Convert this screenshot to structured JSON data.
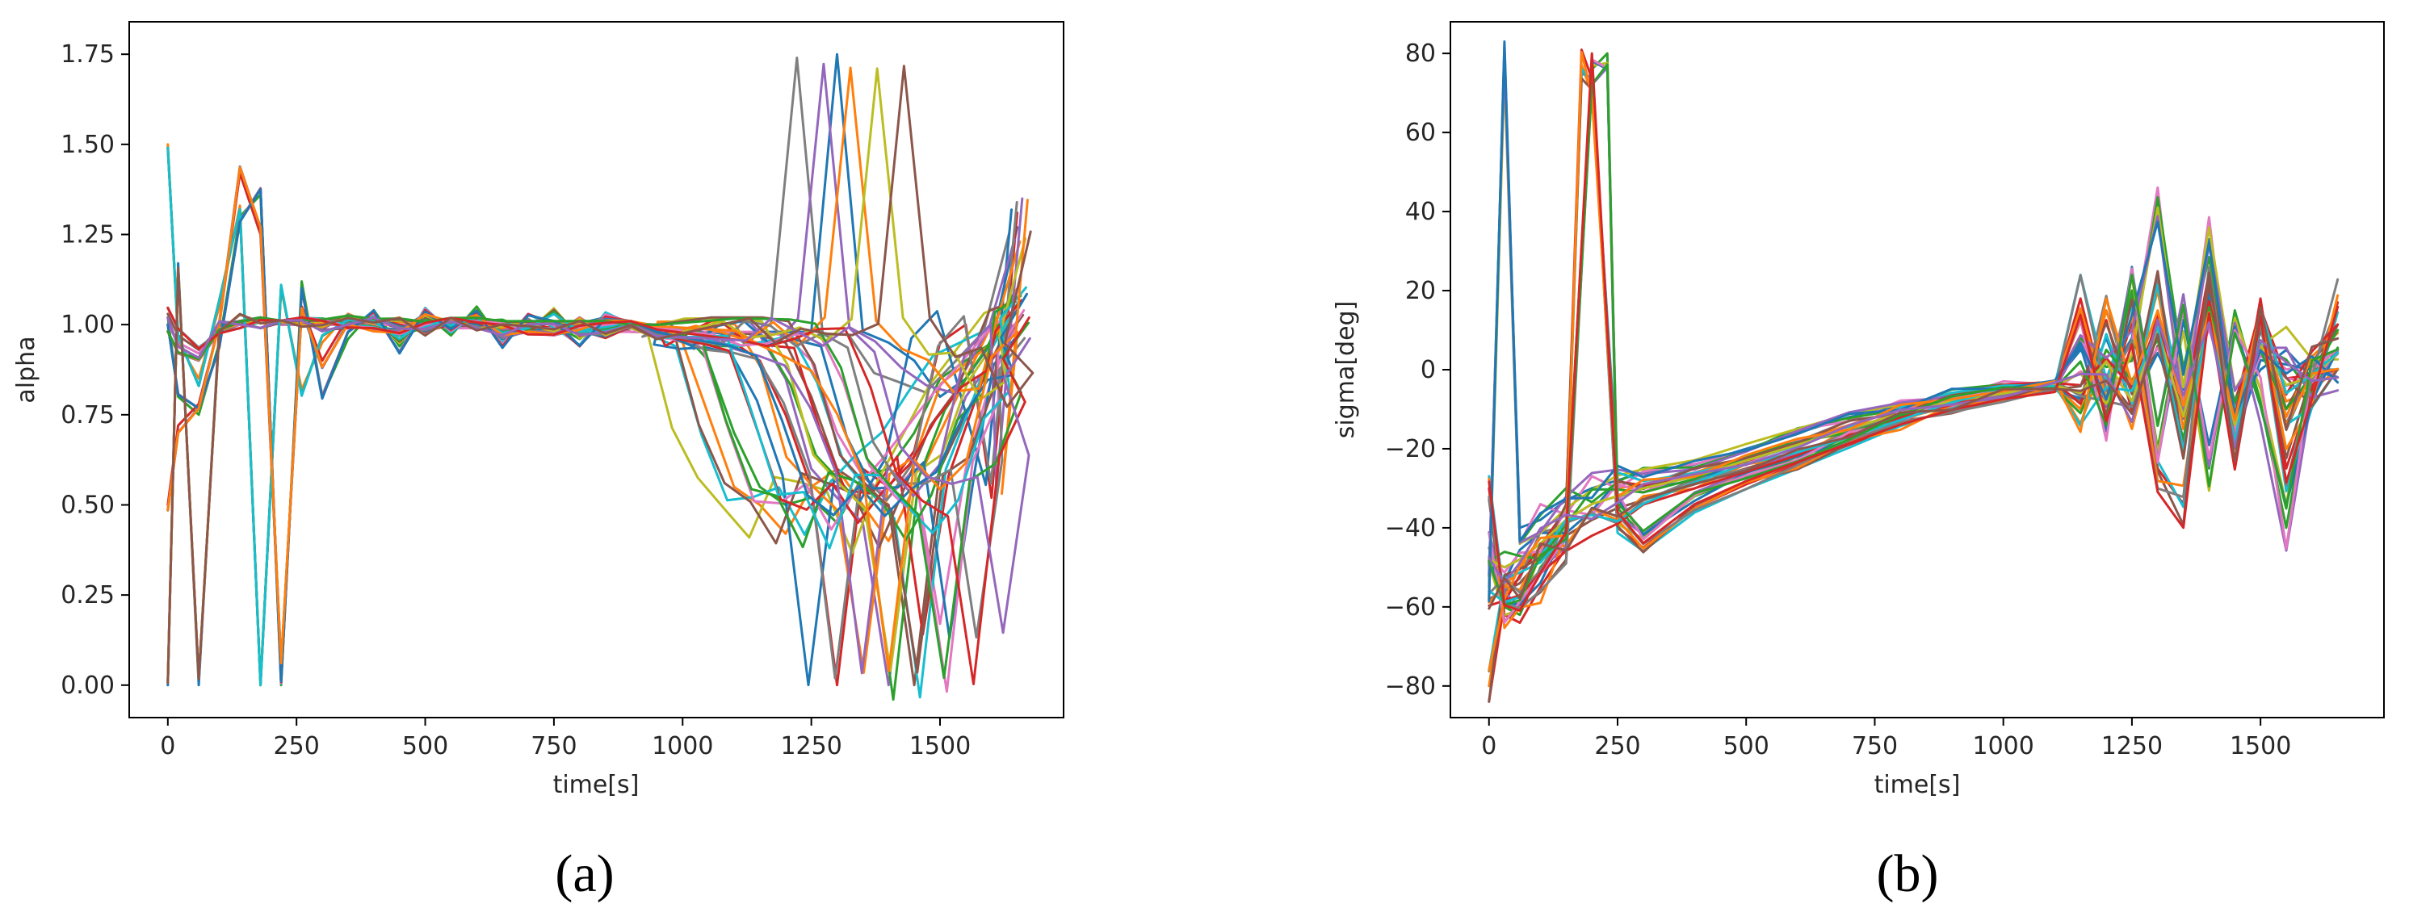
{
  "chart_data": [
    {
      "type": "line",
      "panel_label": "(a)",
      "title": "",
      "xlabel": "time[s]",
      "ylabel": "alpha",
      "xlim": [
        -75,
        1740
      ],
      "ylim": [
        -0.09,
        1.84
      ],
      "xticks": [
        0,
        250,
        500,
        750,
        1000,
        1250,
        1500
      ],
      "xtick_labels": [
        "0",
        "250",
        "500",
        "750",
        "1000",
        "1250",
        "1500"
      ],
      "yticks": [
        0.0,
        0.25,
        0.5,
        0.75,
        1.0,
        1.25,
        1.5,
        1.75
      ],
      "ytick_labels": [
        "0.00",
        "0.25",
        "0.50",
        "0.75",
        "1.00",
        "1.25",
        "1.50",
        "1.75"
      ],
      "grid": false,
      "legend": "none",
      "series_count": 36,
      "series": [
        {
          "x": [
            0,
            20,
            60,
            100,
            140,
            180,
            220,
            260,
            300,
            350,
            400,
            450,
            500,
            550,
            600,
            650,
            700,
            750,
            800,
            850,
            900,
            950,
            1000,
            1050,
            1100,
            1150,
            1200,
            1250,
            1300,
            1350,
            1400,
            1450,
            1500,
            1550,
            1600,
            1650
          ],
          "y": [
            0.0,
            1.17,
            0.0,
            1.0,
            1.01,
            1.02,
            1.0,
            1.0,
            1.0,
            1.01,
            1.02,
            1.0,
            0.99,
            1.0,
            1.0,
            0.99,
            1.0,
            0.99,
            1.0,
            0.99,
            0.98,
            0.98,
            0.98,
            0.98,
            0.97,
            0.98,
            0.98,
            0.98,
            1.75,
            0.98,
            0.95,
            0.9,
            0.8,
            0.85,
            0.95,
            1.27
          ]
        },
        {
          "x": [
            0,
            20,
            60,
            100,
            140,
            180,
            220,
            260,
            300,
            350,
            400,
            450,
            500,
            550,
            600,
            650,
            700,
            750,
            800,
            850,
            900,
            950,
            1000,
            1050,
            1100,
            1150,
            1200,
            1250,
            1300,
            1350,
            1400,
            1450,
            1500,
            1550,
            1600,
            1650
          ],
          "y": [
            1.5,
            0.95,
            0.85,
            1.05,
            1.33,
            0.0,
            1.1,
            0.82,
            0.95,
            1.03,
            1.0,
            0.96,
            1.02,
            0.98,
            1.04,
            0.96,
            1.0,
            1.03,
            0.97,
            1.0,
            0.98,
            0.98,
            0.95,
            0.75,
            0.55,
            0.5,
            0.42,
            0.55,
            0.6,
            0.5,
            0.4,
            0.55,
            0.7,
            0.85,
            1.0,
            1.1
          ]
        },
        {
          "x": [
            0,
            20,
            60,
            100,
            140,
            180,
            220,
            260,
            300,
            350,
            400,
            450,
            500,
            550,
            600,
            650,
            700,
            750,
            800,
            850,
            900,
            950,
            1000,
            1050,
            1100,
            1150,
            1200,
            1250,
            1300,
            1350,
            1400,
            1450,
            1500,
            1550,
            1600,
            1650
          ],
          "y": [
            1.02,
            0.8,
            0.75,
            0.95,
            1.3,
            1.36,
            0.0,
            1.12,
            0.8,
            0.96,
            1.04,
            0.94,
            1.03,
            0.97,
            1.05,
            0.95,
            1.01,
            1.0,
            0.96,
            1.02,
            0.99,
            0.98,
            0.98,
            0.9,
            0.7,
            0.55,
            0.5,
            0.52,
            0.45,
            0.58,
            0.6,
            0.7,
            0.85,
            0.9,
            0.95,
            1.05
          ]
        },
        {
          "x": [
            0,
            20,
            60,
            100,
            140,
            180,
            220,
            260,
            300,
            350,
            400,
            450,
            500,
            550,
            600,
            650,
            700,
            750,
            800,
            850,
            900,
            950,
            1000,
            1050,
            1100,
            1150,
            1200,
            1250,
            1300,
            1350,
            1400,
            1450,
            1500,
            1550,
            1600,
            1650
          ],
          "y": [
            0.5,
            0.72,
            0.78,
            1.0,
            1.42,
            1.25,
            0.05,
            1.05,
            0.9,
            1.02,
            0.99,
            0.97,
            1.01,
            0.99,
            1.02,
            0.98,
            1.0,
            0.99,
            0.99,
            1.0,
            0.99,
            0.98,
            0.98,
            0.97,
            0.95,
            0.9,
            0.75,
            0.55,
            0.0,
            0.6,
            0.55,
            0.65,
            0.95,
            1.0,
            0.52,
            1.31
          ]
        },
        {
          "x": [
            0,
            20,
            60,
            100,
            140,
            180,
            220,
            260,
            300,
            350,
            400,
            450,
            500,
            550,
            600,
            650,
            700,
            750,
            800,
            850,
            900,
            950,
            1000,
            1050,
            1100,
            1150,
            1200,
            1250,
            1300,
            1350,
            1400,
            1450,
            1500,
            1550,
            1600,
            1650
          ],
          "y": [
            0.98,
            0.92,
            0.9,
            0.98,
            1.0,
            1.01,
            1.0,
            1.0,
            1.0,
            1.01,
            1.0,
            1.0,
            0.99,
            1.0,
            1.0,
            0.99,
            0.99,
            0.99,
            0.99,
            0.99,
            0.98,
            0.98,
            0.98,
            0.98,
            0.98,
            0.97,
            0.85,
            0.6,
            0.52,
            0.45,
            0.0,
            0.55,
            0.6,
            0.8,
            0.9,
            1.0
          ]
        },
        {
          "x": [
            0,
            20,
            60,
            100,
            140,
            180,
            220,
            260,
            300,
            350,
            400,
            450,
            500,
            550,
            600,
            650,
            700,
            750,
            800,
            850,
            900,
            950,
            1000,
            1050,
            1100,
            1150,
            1200,
            1250,
            1300,
            1350,
            1400,
            1450,
            1500,
            1550,
            1600,
            1650
          ],
          "y": [
            1.03,
            0.97,
            0.93,
            0.99,
            1.01,
            1.02,
            1.0,
            1.0,
            1.0,
            1.0,
            1.01,
            0.99,
            1.0,
            1.0,
            0.99,
            1.0,
            0.99,
            0.99,
            1.0,
            0.99,
            0.99,
            0.98,
            0.98,
            0.98,
            0.98,
            0.97,
            0.95,
            0.8,
            0.6,
            0.55,
            0.5,
            0.0,
            0.6,
            0.75,
            0.9,
            1.05
          ]
        },
        {
          "x": [
            0,
            20,
            60,
            100,
            140,
            180,
            220,
            260,
            300,
            350,
            400,
            450,
            500,
            550,
            600,
            650,
            700,
            750,
            800,
            850,
            900,
            950,
            1000,
            1050,
            1100,
            1150,
            1200,
            1250,
            1300,
            1350,
            1400,
            1450,
            1500,
            1550,
            1600,
            1650
          ],
          "y": [
            1.0,
            0.95,
            0.92,
            0.99,
            1.0,
            1.01,
            1.0,
            1.0,
            1.0,
            1.0,
            1.0,
            1.0,
            1.0,
            0.99,
            0.99,
            0.99,
            0.99,
            0.99,
            0.99,
            0.98,
            0.98,
            0.98,
            0.98,
            0.98,
            0.98,
            0.98,
            0.97,
            0.9,
            0.7,
            0.58,
            0.52,
            0.6,
            0.17,
            0.6,
            0.85,
            1.0
          ]
        }
      ]
    },
    {
      "type": "line",
      "panel_label": "(b)",
      "title": "",
      "xlabel": "time[s]",
      "ylabel": "sigma[deg]",
      "xlim": [
        -75,
        1740
      ],
      "ylim": [
        -88,
        88
      ],
      "xticks": [
        0,
        250,
        500,
        750,
        1000,
        1250,
        1500
      ],
      "xtick_labels": [
        "0",
        "250",
        "500",
        "750",
        "1000",
        "1250",
        "1500"
      ],
      "yticks": [
        -80,
        -60,
        -40,
        -20,
        0,
        20,
        40,
        60,
        80
      ],
      "ytick_labels": [
        "−80",
        "−60",
        "−40",
        "−20",
        "0",
        "20",
        "40",
        "60",
        "80"
      ],
      "grid": false,
      "legend": "none",
      "series_count": 36,
      "series": [
        {
          "x": [
            0,
            30,
            60,
            100,
            150,
            200,
            250,
            300,
            400,
            500,
            600,
            700,
            800,
            900,
            1000,
            1100,
            1150,
            1200,
            1250,
            1300,
            1350,
            1400,
            1450,
            1500,
            1550,
            1600,
            1650
          ],
          "y": [
            -55,
            79,
            -40,
            -38,
            -33,
            -30,
            -28,
            -26,
            -24,
            -20,
            -16,
            -12,
            -9,
            -6,
            -4,
            -3,
            5,
            -3,
            8,
            43,
            -5,
            33,
            -10,
            0,
            5,
            -2,
            0
          ]
        },
        {
          "x": [
            0,
            30,
            60,
            100,
            150,
            180,
            200,
            250,
            300,
            400,
            500,
            600,
            700,
            800,
            900,
            1000,
            1100,
            1150,
            1200,
            1250,
            1300,
            1350,
            1400,
            1450,
            1500,
            1550,
            1600,
            1650
          ],
          "y": [
            -80,
            -55,
            -50,
            -45,
            -38,
            77,
            70,
            -30,
            -29,
            -26,
            -22,
            -18,
            -14,
            -10,
            -7,
            -5,
            -4,
            -10,
            15,
            -5,
            20,
            -15,
            18,
            -12,
            10,
            -8,
            -5,
            0
          ]
        },
        {
          "x": [
            0,
            30,
            60,
            100,
            150,
            200,
            230,
            250,
            300,
            400,
            500,
            600,
            700,
            800,
            900,
            1000,
            1100,
            1150,
            1200,
            1250,
            1300,
            1350,
            1400,
            1450,
            1500,
            1550,
            1600,
            1650
          ],
          "y": [
            -45,
            -60,
            -62,
            -50,
            -42,
            76,
            80,
            -35,
            -42,
            -32,
            -27,
            -22,
            -17,
            -12,
            -8,
            -5,
            -4,
            8,
            -12,
            20,
            -20,
            15,
            -25,
            15,
            -8,
            -40,
            -3,
            5
          ]
        },
        {
          "x": [
            0,
            30,
            60,
            100,
            150,
            200,
            250,
            300,
            400,
            500,
            600,
            700,
            800,
            900,
            1000,
            1100,
            1150,
            1200,
            1250,
            1300,
            1350,
            1400,
            1450,
            1500,
            1550,
            1600,
            1650
          ],
          "y": [
            -30,
            -62,
            -64,
            -55,
            -45,
            76,
            -40,
            -45,
            -35,
            -29,
            -24,
            -19,
            -14,
            -10,
            -7,
            -5,
            18,
            -8,
            12,
            -25,
            -34,
            20,
            -20,
            18,
            -25,
            -5,
            17
          ]
        },
        {
          "x": [
            0,
            30,
            60,
            100,
            150,
            200,
            250,
            300,
            400,
            500,
            600,
            700,
            800,
            900,
            1000,
            1100,
            1150,
            1200,
            1250,
            1300,
            1350,
            1400,
            1450,
            1500,
            1550,
            1600,
            1650
          ],
          "y": [
            -48,
            -50,
            -48,
            -44,
            -38,
            -34,
            -32,
            -30,
            -27,
            -23,
            -19,
            -15,
            -11,
            -8,
            -6,
            -4,
            -6,
            2,
            -8,
            10,
            -12,
            14,
            -14,
            6,
            -4,
            -2,
            4
          ]
        },
        {
          "x": [
            0,
            30,
            60,
            100,
            150,
            200,
            250,
            300,
            400,
            500,
            600,
            700,
            800,
            900,
            1000,
            1100,
            1150,
            1200,
            1250,
            1300,
            1350,
            1400,
            1450,
            1500,
            1550,
            1600,
            1650
          ],
          "y": [
            -58,
            -56,
            -54,
            -48,
            -42,
            -38,
            -35,
            -33,
            -29,
            -25,
            -21,
            -16,
            -12,
            -9,
            -6,
            -4,
            -8,
            -2,
            -10,
            6,
            -18,
            19,
            -17,
            10,
            -10,
            2,
            10
          ]
        }
      ]
    }
  ]
}
